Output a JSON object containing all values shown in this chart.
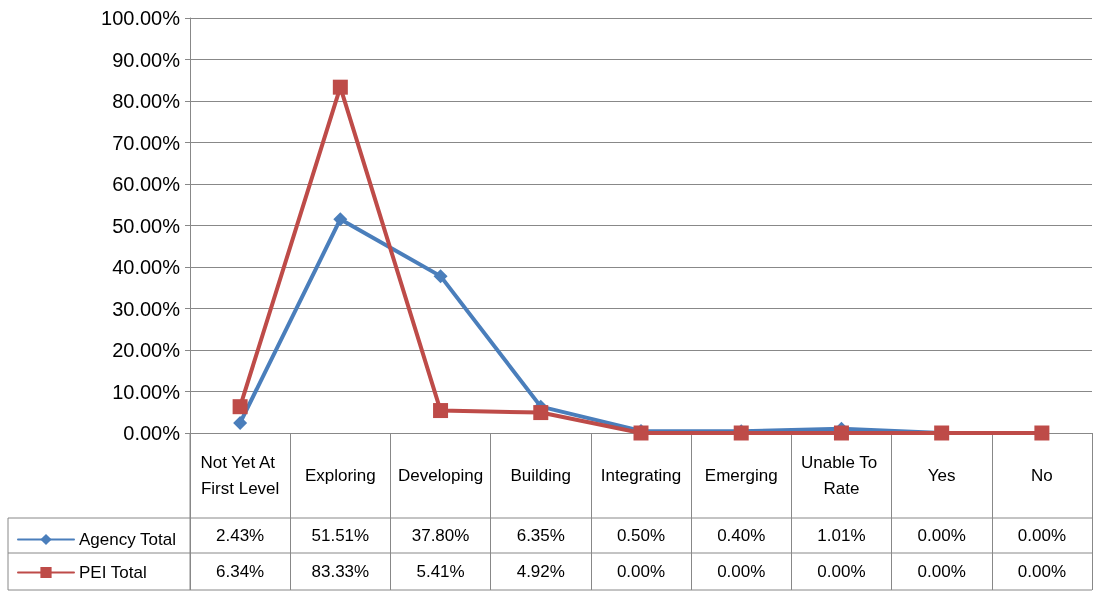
{
  "chart_data": {
    "type": "line",
    "categories": [
      "Not Yet At First Level",
      "Exploring",
      "Developing",
      "Building",
      "Integrating",
      "Emerging",
      "Unable To Rate",
      "Yes",
      "No"
    ],
    "series": [
      {
        "name": "Agency Total",
        "color": "#4a7ebb",
        "marker": "diamond",
        "values": [
          2.43,
          51.51,
          37.8,
          6.35,
          0.5,
          0.4,
          1.01,
          0,
          0
        ],
        "value_labels": [
          "2.43%",
          "51.51%",
          "37.80%",
          "6.35%",
          "0.50%",
          "0.40%",
          "1.01%",
          "0.00%",
          "0.00%"
        ]
      },
      {
        "name": "PEI Total",
        "color": "#be4b48",
        "marker": "square",
        "values": [
          6.34,
          83.33,
          5.41,
          4.92,
          0,
          0,
          0,
          0,
          0
        ],
        "value_labels": [
          "6.34%",
          "83.33%",
          "5.41%",
          "4.92%",
          "0.00%",
          "0.00%",
          "0.00%",
          "0.00%",
          "0.00%"
        ]
      }
    ],
    "ylim": [
      0,
      100
    ],
    "yticks": [
      {
        "value": 0,
        "label": "0.00%"
      },
      {
        "value": 10,
        "label": "10.00%"
      },
      {
        "value": 20,
        "label": "20.00%"
      },
      {
        "value": 30,
        "label": "30.00%"
      },
      {
        "value": 40,
        "label": "40.00%"
      },
      {
        "value": 50,
        "label": "50.00%"
      },
      {
        "value": 60,
        "label": "60.00%"
      },
      {
        "value": 70,
        "label": "70.00%"
      },
      {
        "value": 80,
        "label": "80.00%"
      },
      {
        "value": 90,
        "label": "90.00%"
      },
      {
        "value": 100,
        "label": "100.00%"
      }
    ],
    "grid": "y",
    "legend": "bottom left",
    "line_style": "solid"
  }
}
